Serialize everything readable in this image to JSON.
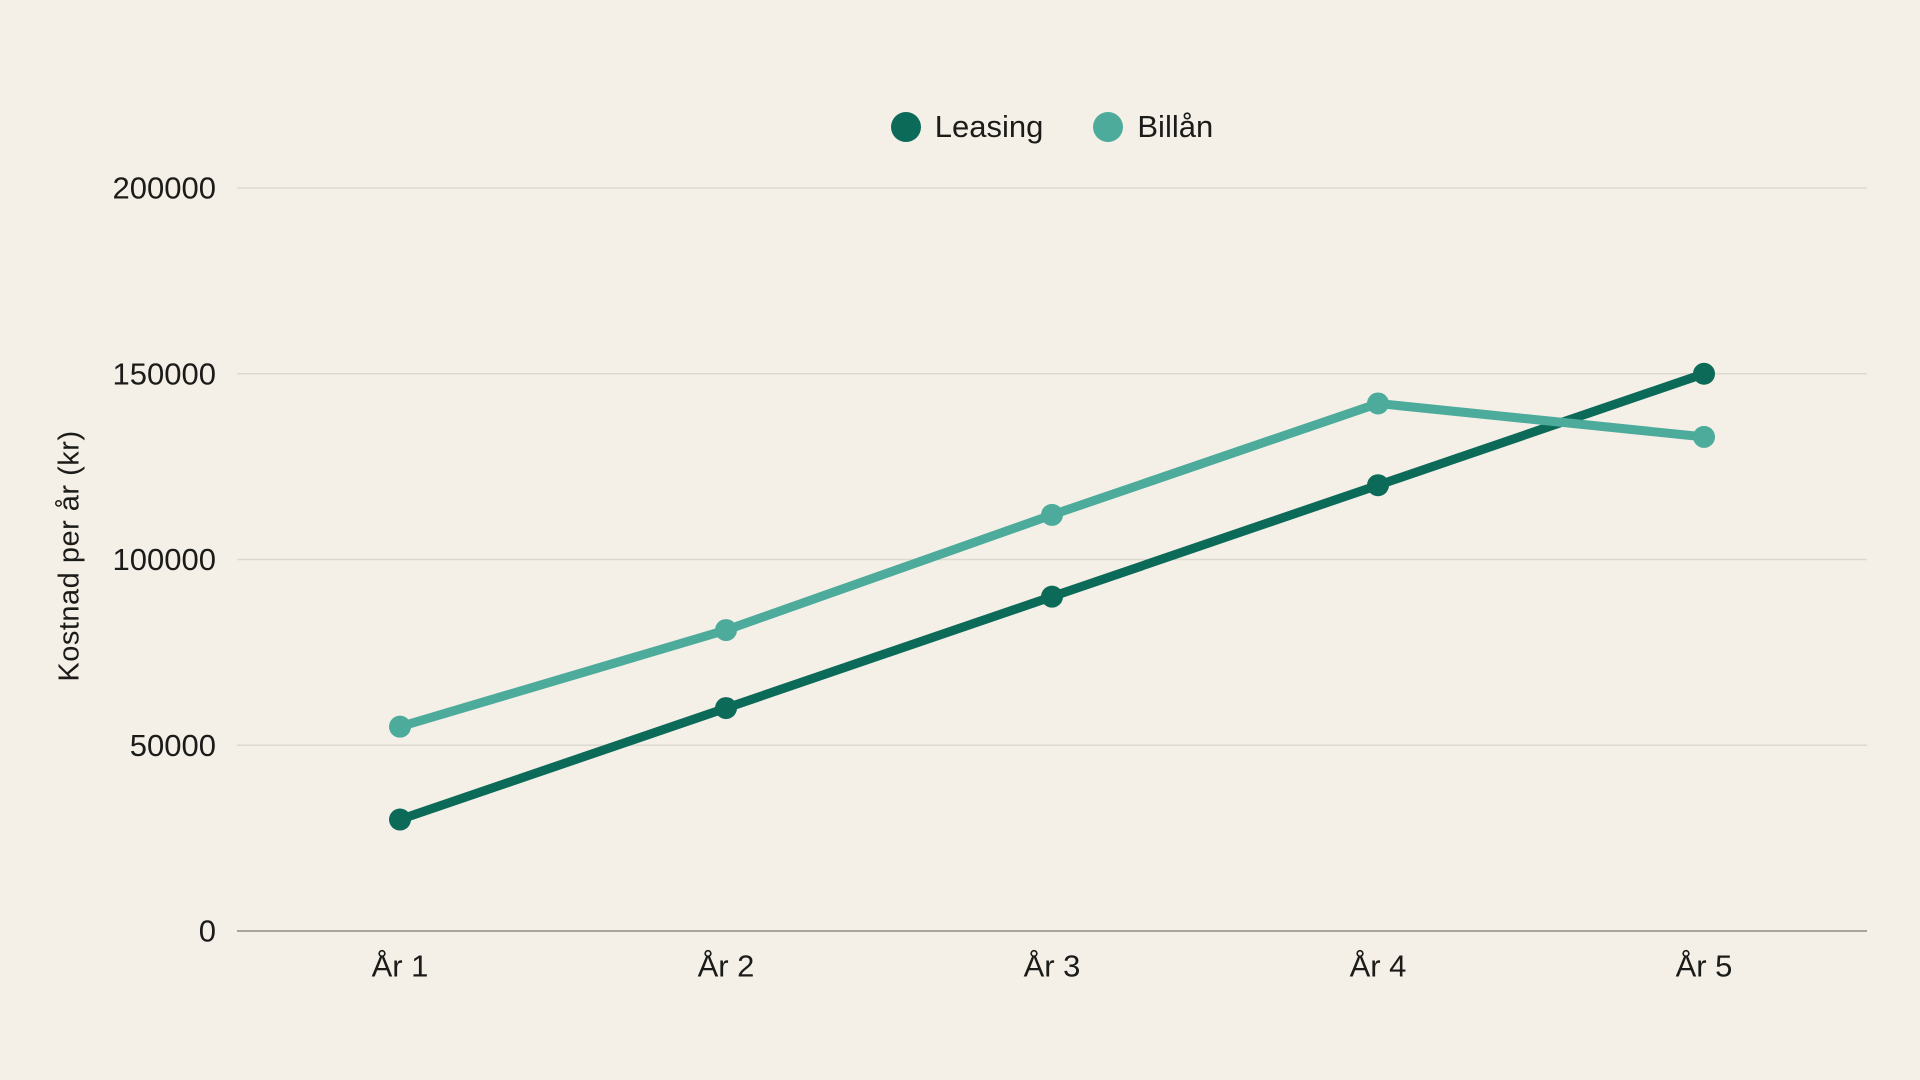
{
  "page": {
    "background_color": "#f4f0e8",
    "text_color": "#1b1b19"
  },
  "chart_data": {
    "type": "line",
    "categories": [
      "År 1",
      "År 2",
      "År 3",
      "År 4",
      "År 5"
    ],
    "series": [
      {
        "name": "Leasing",
        "color": "#0c6a59",
        "values": [
          30000,
          60000,
          90000,
          120000,
          150000
        ]
      },
      {
        "name": "Billån",
        "color": "#4cab9b",
        "values": [
          55000,
          81000,
          112000,
          142000,
          133000
        ]
      }
    ],
    "title": "",
    "xlabel": "",
    "ylabel": "Kostnad per år (kr)",
    "ylim": [
      0,
      200000
    ],
    "yticks": [
      0,
      50000,
      100000,
      150000,
      200000
    ],
    "grid": true,
    "grid_color": "#dcd9d1",
    "axis_color": "#a8a59d",
    "legend_position": "top-center"
  }
}
